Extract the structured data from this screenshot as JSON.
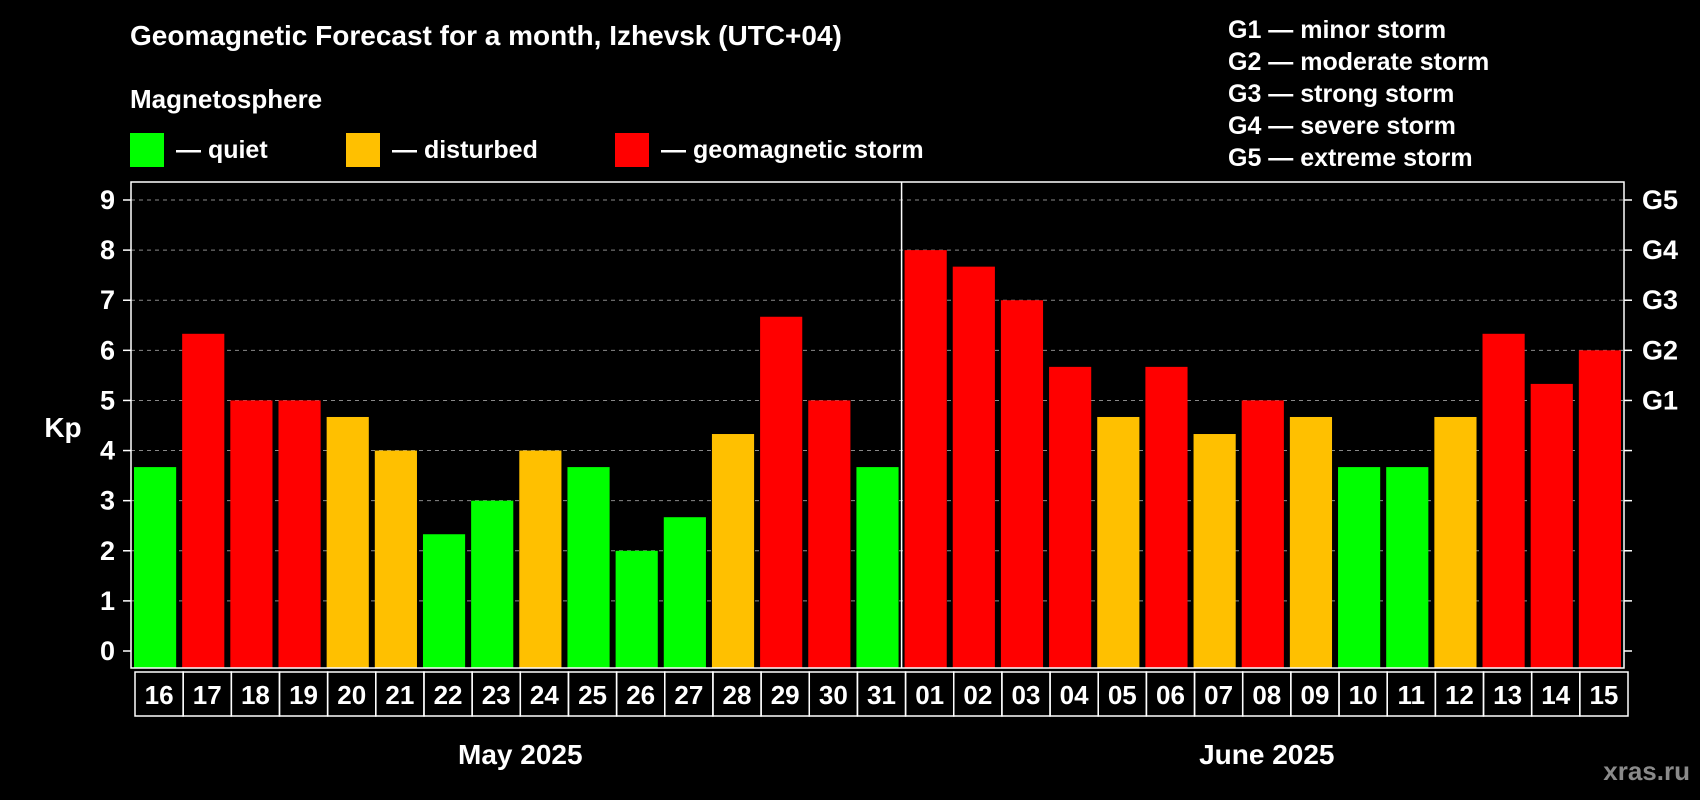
{
  "header": {
    "title": "Geomagnetic Forecast for a month, Izhevsk (UTC+04)",
    "subtitle": "Magnetosphere"
  },
  "legend": [
    {
      "label": "— quiet",
      "color": "#00ff00"
    },
    {
      "label": "— disturbed",
      "color": "#ffc000"
    },
    {
      "label": "— geomagnetic storm",
      "color": "#ff0000"
    }
  ],
  "storm_scale": [
    "G1 — minor storm",
    "G2 — moderate storm",
    "G3 — strong storm",
    "G4 — severe storm",
    "G5 — extreme storm"
  ],
  "watermark": "xras.ru",
  "colors": {
    "quiet": "#00ff00",
    "disturbed": "#ffc000",
    "storm": "#ff0000"
  },
  "chart_data": {
    "type": "bar",
    "ylabel": "Kp",
    "ylim": [
      0,
      9
    ],
    "yticks": [
      0,
      1,
      2,
      3,
      4,
      5,
      6,
      7,
      8,
      9
    ],
    "right_axis_labels": [
      {
        "value": 5,
        "label": "G1"
      },
      {
        "value": 6,
        "label": "G2"
      },
      {
        "value": 7,
        "label": "G3"
      },
      {
        "value": 8,
        "label": "G4"
      },
      {
        "value": 9,
        "label": "G5"
      }
    ],
    "grid": true,
    "months": [
      {
        "label": "May 2025",
        "days": [
          "16",
          "17",
          "18",
          "19",
          "20",
          "21",
          "22",
          "23",
          "24",
          "25",
          "26",
          "27",
          "28",
          "29",
          "30",
          "31"
        ]
      },
      {
        "label": "June 2025",
        "days": [
          "01",
          "02",
          "03",
          "04",
          "05",
          "06",
          "07",
          "08",
          "09",
          "10",
          "11",
          "12",
          "13",
          "14",
          "15"
        ]
      }
    ],
    "values": [
      3.67,
      6.33,
      5.0,
      5.0,
      4.67,
      4.0,
      2.33,
      3.0,
      4.0,
      3.67,
      2.0,
      2.67,
      4.33,
      6.67,
      5.0,
      3.67,
      8.0,
      7.67,
      7.0,
      5.67,
      4.67,
      5.67,
      4.33,
      5.0,
      4.67,
      3.67,
      3.67,
      4.67,
      6.33,
      5.33,
      6.0
    ],
    "status": [
      "quiet",
      "storm",
      "storm",
      "storm",
      "disturbed",
      "disturbed",
      "quiet",
      "quiet",
      "disturbed",
      "quiet",
      "quiet",
      "quiet",
      "disturbed",
      "storm",
      "storm",
      "quiet",
      "storm",
      "storm",
      "storm",
      "storm",
      "disturbed",
      "storm",
      "disturbed",
      "storm",
      "disturbed",
      "quiet",
      "quiet",
      "disturbed",
      "storm",
      "storm",
      "storm"
    ]
  }
}
